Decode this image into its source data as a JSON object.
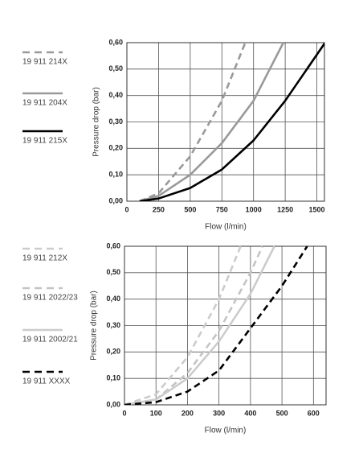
{
  "chart_data": [
    {
      "type": "line",
      "x_label": "Flow (l/min)",
      "y_label": "Pressure drop (bar)",
      "legend": "left",
      "grid": true,
      "xlim": [
        0,
        1560
      ],
      "xticks": [
        0,
        250,
        500,
        750,
        1000,
        1250,
        1500
      ],
      "ylim": [
        0,
        0.6
      ],
      "yticks": [
        {
          "value": 0,
          "label": "0,00"
        },
        {
          "value": 0.1,
          "label": "0,10"
        },
        {
          "value": 0.2,
          "label": "0,20"
        },
        {
          "value": 0.3,
          "label": "0,30"
        },
        {
          "value": 0.4,
          "label": "0,40"
        },
        {
          "value": 0.5,
          "label": "0,50"
        },
        {
          "value": 0.6,
          "label": "0,60"
        }
      ],
      "series": [
        {
          "name": "19 911 214X",
          "color": "#999999",
          "dashed": true,
          "x": [
            100,
            250,
            500,
            750,
            935
          ],
          "values": [
            0,
            0.03,
            0.17,
            0.38,
            0.6
          ]
        },
        {
          "name": "19 911 204X",
          "color": "#999999",
          "dashed": false,
          "x": [
            100,
            250,
            500,
            750,
            1000,
            1235
          ],
          "values": [
            0,
            0.02,
            0.1,
            0.22,
            0.38,
            0.6
          ]
        },
        {
          "name": "19 911 215X",
          "color": "#000000",
          "dashed": false,
          "x": [
            100,
            250,
            500,
            750,
            1000,
            1250,
            1565
          ],
          "values": [
            0,
            0.01,
            0.05,
            0.12,
            0.23,
            0.38,
            0.6
          ]
        }
      ]
    },
    {
      "type": "line",
      "x_label": "Flow (l/min)",
      "y_label": "Pressure drop (bar)",
      "legend": "left",
      "grid": true,
      "xlim": [
        0,
        640
      ],
      "xticks": [
        0,
        100,
        200,
        300,
        400,
        500,
        600
      ],
      "ylim": [
        0,
        0.6
      ],
      "yticks": [
        {
          "value": 0,
          "label": "0,00"
        },
        {
          "value": 0.1,
          "label": "0,10"
        },
        {
          "value": 0.2,
          "label": "0,20"
        },
        {
          "value": 0.3,
          "label": "0,30"
        },
        {
          "value": 0.4,
          "label": "0,40"
        },
        {
          "value": 0.5,
          "label": "0,50"
        },
        {
          "value": 0.6,
          "label": "0,60"
        }
      ],
      "series": [
        {
          "name": "19 911 212X",
          "color": "#cccccc",
          "dashed": true,
          "x": [
            0,
            100,
            200,
            300,
            369
          ],
          "values": [
            0,
            0.04,
            0.18,
            0.4,
            0.6
          ]
        },
        {
          "name": "19 911 2022/23",
          "color": "#c4c4c4",
          "dashed": true,
          "x": [
            0,
            100,
            200,
            300,
            400,
            438
          ],
          "values": [
            0,
            0.02,
            0.12,
            0.28,
            0.5,
            0.6
          ]
        },
        {
          "name": "19 911 2002/21",
          "color": "#cccccc",
          "dashed": false,
          "x": [
            0,
            100,
            200,
            300,
            400,
            476
          ],
          "values": [
            0,
            0.02,
            0.1,
            0.24,
            0.42,
            0.6
          ]
        },
        {
          "name": "19 911 XXXX",
          "color": "#000000",
          "dashed": true,
          "x": [
            0,
            100,
            200,
            300,
            400,
            500,
            580
          ],
          "values": [
            0,
            0.01,
            0.05,
            0.13,
            0.29,
            0.45,
            0.6
          ]
        }
      ]
    }
  ]
}
